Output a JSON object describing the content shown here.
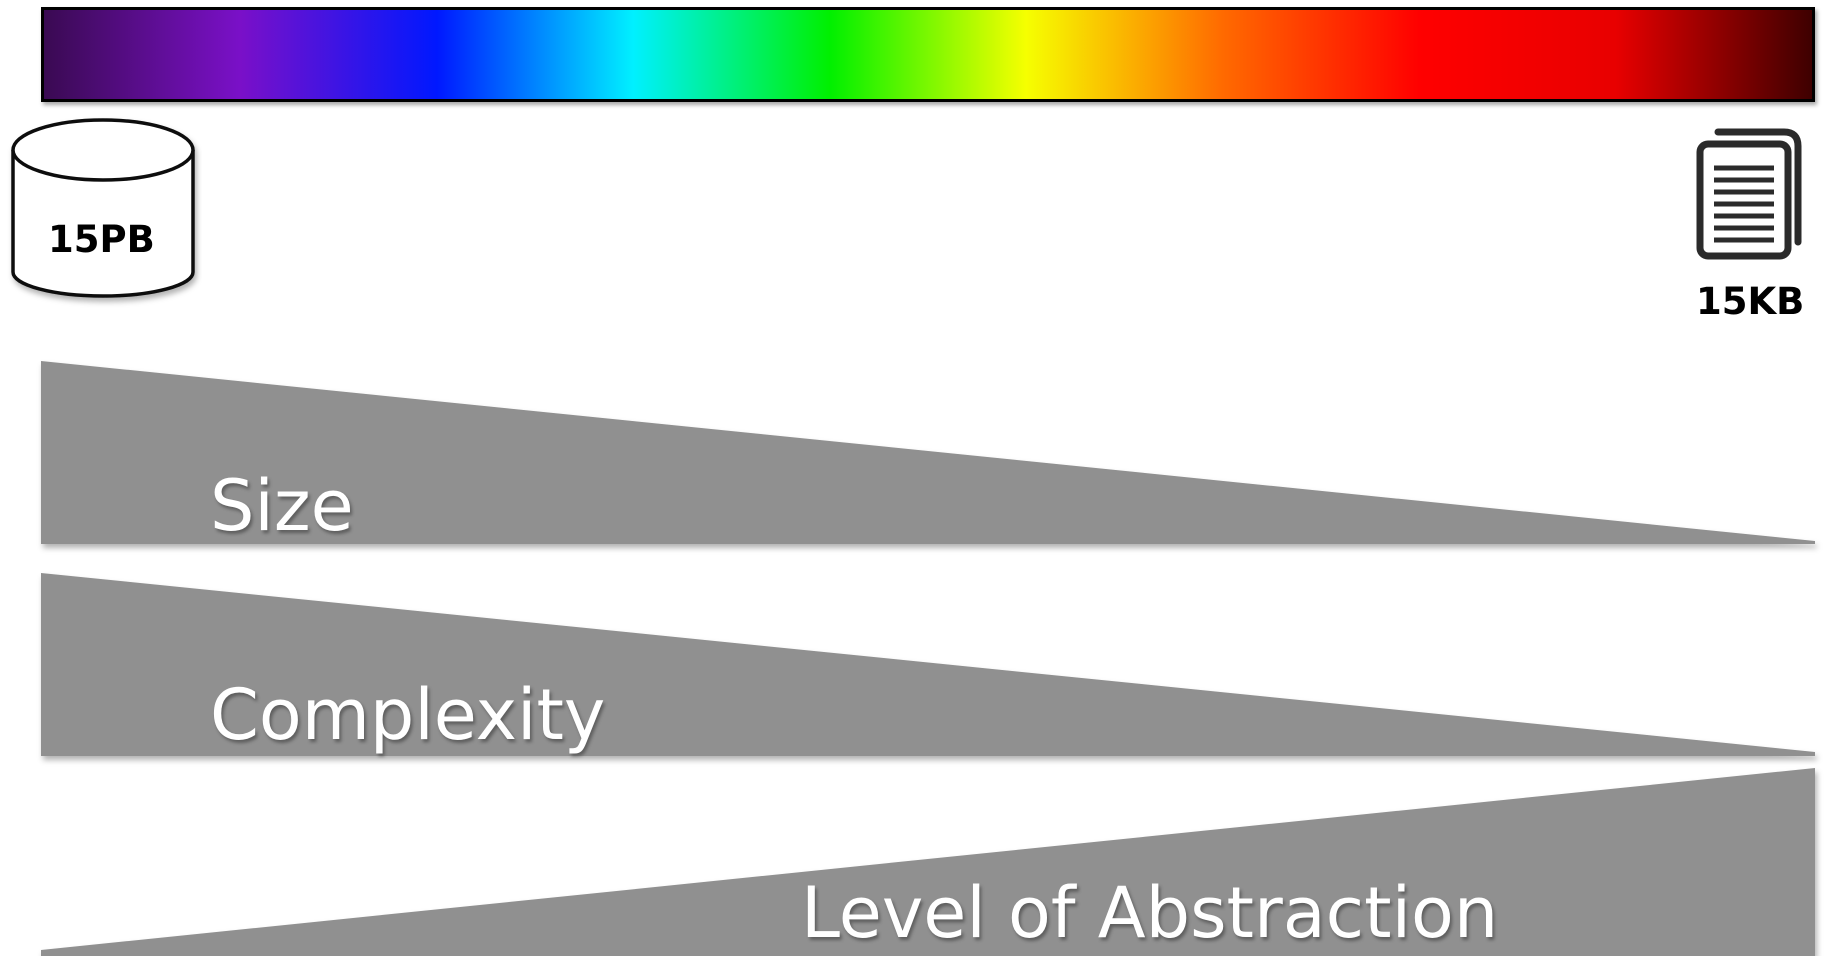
{
  "spectrum": {
    "stops": [
      "#3a0a52",
      "#7a10c8",
      "#0018ff",
      "#00f0ff",
      "#00f000",
      "#f6ff00",
      "#ff6a00",
      "#ff0000",
      "#e80000",
      "#3e0000"
    ]
  },
  "storage": {
    "large_label": "15PB",
    "large_icon": "database-cylinder-icon",
    "small_label": "15KB",
    "small_icon": "document-stack-icon"
  },
  "wedges": {
    "size_label": "Size",
    "complexity_label": "Complexity",
    "abstraction_label": "Level of Abstraction",
    "color": "#909090"
  }
}
